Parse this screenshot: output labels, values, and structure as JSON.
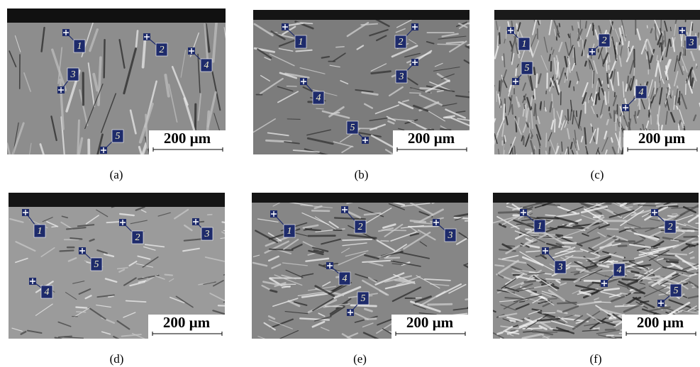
{
  "panels": [
    {
      "label": "(a)",
      "scale_bar": "200 µm",
      "markers": [
        "1",
        "2",
        "3",
        "4",
        "5"
      ]
    },
    {
      "label": "(b)",
      "scale_bar": "200 µm",
      "markers": [
        "1",
        "2",
        "3",
        "4",
        "5"
      ]
    },
    {
      "label": "(c)",
      "scale_bar": "200 µm",
      "markers": [
        "1",
        "2",
        "3",
        "4",
        "5"
      ]
    },
    {
      "label": "(d)",
      "scale_bar": "200 µm",
      "markers": [
        "1",
        "2",
        "3",
        "4",
        "5"
      ]
    },
    {
      "label": "(e)",
      "scale_bar": "200 µm",
      "markers": [
        "1",
        "2",
        "3",
        "4",
        "5"
      ]
    },
    {
      "label": "(f)",
      "scale_bar": "200 µm",
      "markers": [
        "1",
        "2",
        "3",
        "4",
        "5"
      ]
    }
  ]
}
